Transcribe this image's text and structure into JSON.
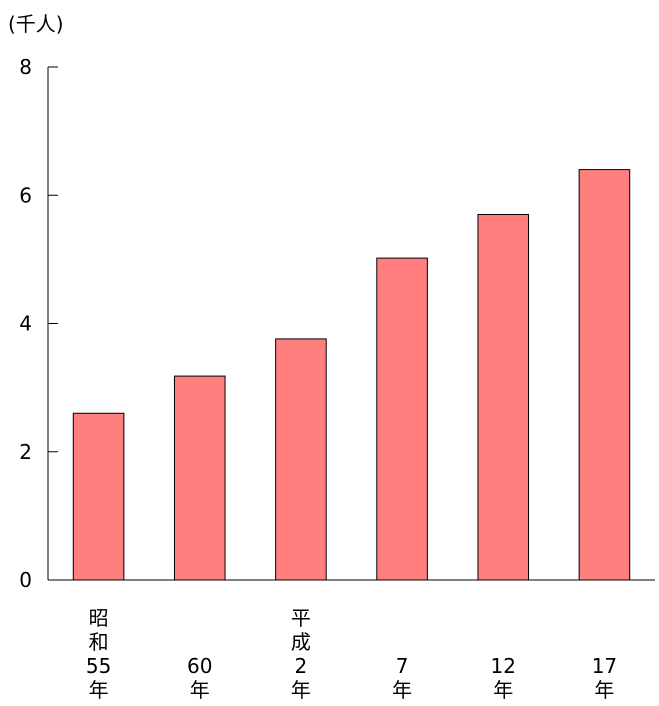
{
  "chart_data": {
    "type": "bar",
    "unit_label": "(千人)",
    "categories": [
      [
        "昭",
        "和",
        "55",
        "年"
      ],
      [
        "60",
        "年"
      ],
      [
        "平",
        "成",
        "2",
        "年"
      ],
      [
        "7",
        "年"
      ],
      [
        "12",
        "年"
      ],
      [
        "17",
        "年"
      ]
    ],
    "values": [
      2.6,
      3.18,
      3.76,
      5.02,
      5.7,
      6.4
    ],
    "yticks": [
      "0",
      "2",
      "4",
      "6",
      "8"
    ],
    "ylim": [
      0,
      8
    ],
    "grid": false,
    "legend": "none",
    "bar_color": "#ff7f7f",
    "bar_stroke": "#000000"
  }
}
